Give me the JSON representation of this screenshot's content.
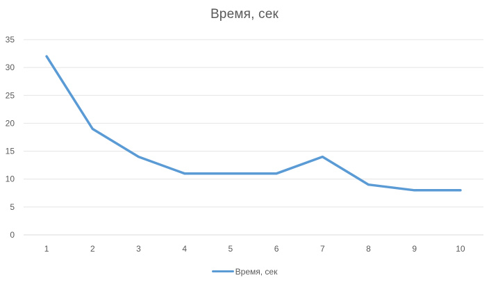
{
  "chart_data": {
    "type": "line",
    "title": "Время, сек",
    "xlabel": "",
    "ylabel": "",
    "categories": [
      "1",
      "2",
      "3",
      "4",
      "5",
      "6",
      "7",
      "8",
      "9",
      "10"
    ],
    "series": [
      {
        "name": "Время, сек",
        "values": [
          32,
          19,
          14,
          11,
          11,
          11,
          14,
          9,
          8,
          8
        ],
        "color": "#5b9bd5"
      }
    ],
    "ylim": [
      0,
      35
    ],
    "yticks": [
      "0",
      "5",
      "10",
      "15",
      "20",
      "25",
      "30",
      "35"
    ],
    "grid": true,
    "legend_position": "bottom"
  }
}
